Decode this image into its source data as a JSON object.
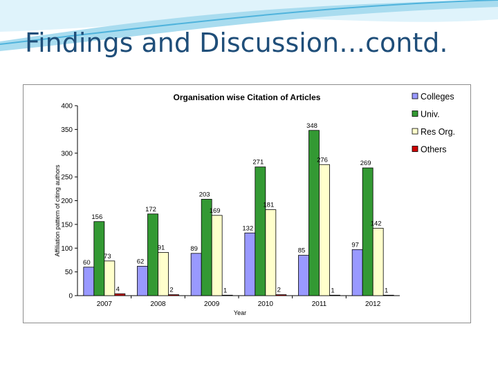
{
  "slide": {
    "title": "Findings and Discussion…contd."
  },
  "colors": {
    "header_wave_light": "#dff3fb",
    "header_wave_mid": "#a9dcef",
    "header_wave_dark": "#4fb3dc",
    "title": "#1f4e79"
  },
  "chart_data": {
    "type": "bar",
    "title": "Organisation wise Citation of Articles",
    "xlabel": "Year",
    "ylabel": "Affiliation pattern of citing authors",
    "categories": [
      "2007",
      "2008",
      "2009",
      "2010",
      "2011",
      "2012"
    ],
    "ylim": [
      0,
      400
    ],
    "yticks": [
      0,
      50,
      100,
      150,
      200,
      250,
      300,
      350,
      400
    ],
    "grid": false,
    "legend_position": "top-right",
    "series": [
      {
        "name": "Colleges",
        "color": "#9999ff",
        "values": [
          60,
          62,
          89,
          132,
          85,
          97
        ]
      },
      {
        "name": "Univ.",
        "color": "#339933",
        "values": [
          156,
          172,
          203,
          271,
          348,
          269
        ]
      },
      {
        "name": "Res Org.",
        "color": "#ffffcc",
        "values": [
          73,
          91,
          169,
          181,
          276,
          142
        ]
      },
      {
        "name": "Others",
        "color": "#cc0000",
        "values": [
          4,
          2,
          1,
          2,
          1,
          1
        ]
      }
    ]
  }
}
